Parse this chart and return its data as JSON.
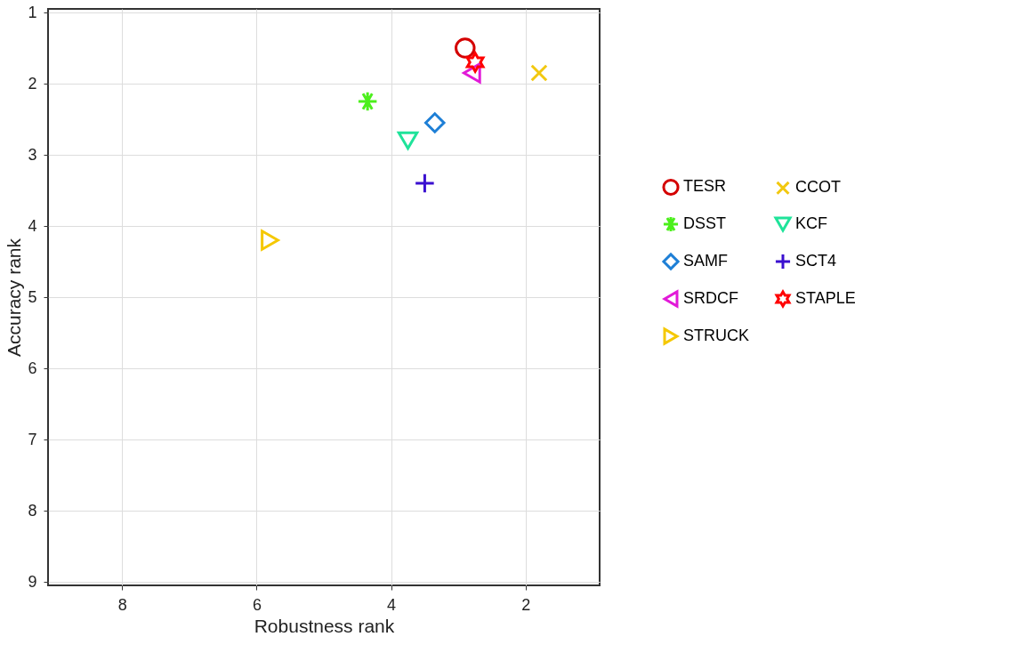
{
  "chart_data": {
    "type": "scatter",
    "xlabel": "Robustness rank",
    "ylabel": "Accuracy rank",
    "xlim": [
      9.1,
      0.9
    ],
    "ylim": [
      9.05,
      0.95
    ],
    "xticks": [
      8,
      6,
      4,
      2
    ],
    "yticks": [
      1,
      2,
      3,
      4,
      5,
      6,
      7,
      8,
      9
    ],
    "grid": true,
    "legend": "right",
    "series": [
      {
        "name": "TESR",
        "color": "#d40000",
        "marker": "circle",
        "x": [
          2.9
        ],
        "values": [
          1.5
        ]
      },
      {
        "name": "DSST",
        "color": "#4cef1c",
        "marker": "cross",
        "x": [
          4.35
        ],
        "values": [
          2.25
        ]
      },
      {
        "name": "SAMF",
        "color": "#1e7fd6",
        "marker": "diamond",
        "x": [
          3.35
        ],
        "values": [
          2.55
        ]
      },
      {
        "name": "SRDCF",
        "color": "#e21ad8",
        "marker": "triangle-left",
        "x": [
          2.8
        ],
        "values": [
          1.85
        ]
      },
      {
        "name": "STRUCK",
        "color": "#f5c800",
        "marker": "triangle-right",
        "x": [
          5.8
        ],
        "values": [
          4.2
        ]
      },
      {
        "name": "CCOT",
        "color": "#f2c80f",
        "marker": "x",
        "x": [
          1.8
        ],
        "values": [
          1.85
        ]
      },
      {
        "name": "KCF",
        "color": "#1fe39a",
        "marker": "triangle-down",
        "x": [
          3.75
        ],
        "values": [
          2.8
        ]
      },
      {
        "name": "SCT4",
        "color": "#3a0fd0",
        "marker": "plus",
        "x": [
          3.5
        ],
        "values": [
          3.4
        ]
      },
      {
        "name": "STAPLE",
        "color": "#ff0000",
        "marker": "star",
        "x": [
          2.75
        ],
        "values": [
          1.7
        ]
      }
    ]
  }
}
